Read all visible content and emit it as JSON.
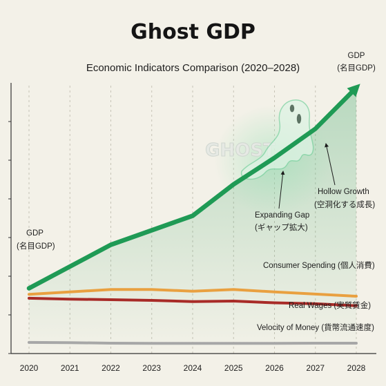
{
  "chart_data": {
    "type": "line",
    "title": "Ghost GDP",
    "subtitle": "Economic Indicators Comparison (2020–2028)",
    "x": [
      "2020",
      "2021",
      "2022",
      "2023",
      "2024",
      "2025",
      "2026",
      "2027",
      "2028"
    ],
    "ylim": [
      0,
      100
    ],
    "grid": "vertical dashed",
    "series": [
      {
        "name": "GDP",
        "name_ja": "(名目GDP)",
        "color": "#1f9a55",
        "values": [
          27,
          36,
          45,
          51,
          57,
          70,
          81,
          93,
          110
        ]
      },
      {
        "name": "Consumer Spending",
        "name_ja": "(個人消費)",
        "color": "#e9a040",
        "values": [
          24.5,
          25.5,
          26.5,
          26.5,
          25.8,
          26.5,
          25.5,
          24.6,
          23.7
        ]
      },
      {
        "name": "Real Wages",
        "name_ja": "(実質賃金)",
        "color": "#a82b27",
        "values": [
          22.9,
          22.5,
          22.3,
          22.0,
          21.5,
          21.7,
          21.0,
          20.6,
          19.8
        ]
      },
      {
        "name": "Velocity of Money",
        "name_ja": "(貨幣流通速度)",
        "color": "#a7a7a7",
        "values": [
          4.6,
          4.5,
          4.3,
          4.2,
          4.2,
          4.2,
          4.2,
          4.3,
          4.3
        ]
      }
    ],
    "annotations": {
      "gdp_start": [
        "GDP",
        "(名目GDP)"
      ],
      "gdp_end": [
        "GDP",
        "(名目GDP)"
      ],
      "expanding_gap": [
        "Expanding Gap",
        "(ギャップ拡大)"
      ],
      "hollow_growth": [
        "Hollow Growth",
        "(空洞化する成長)"
      ],
      "ghost_watermark": "GHOST"
    }
  }
}
